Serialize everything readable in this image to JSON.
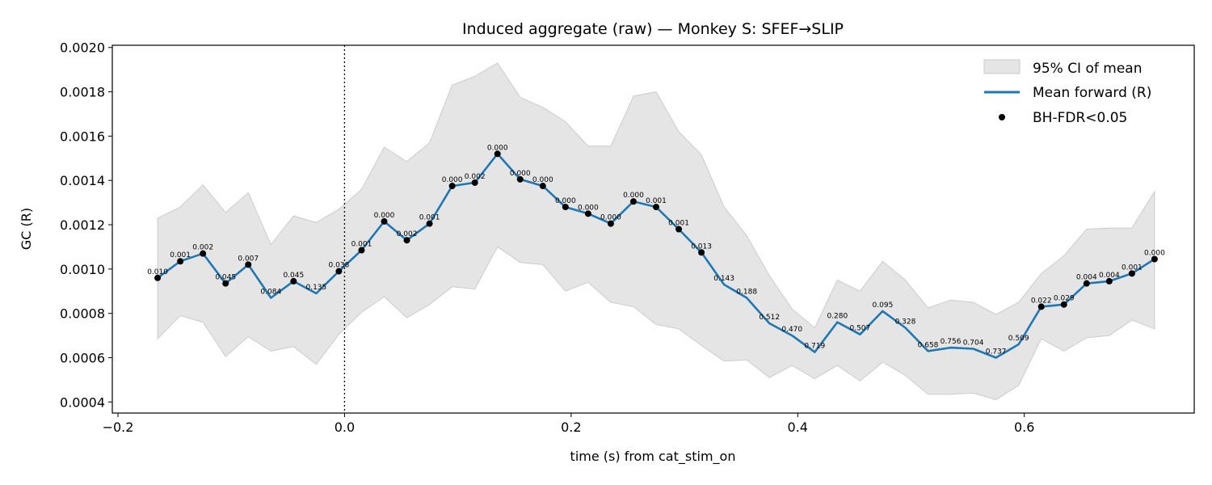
{
  "chart_data": {
    "type": "line",
    "title": "Induced aggregate (raw) — Monkey S: SFEF→SLIP",
    "xlabel": "time (s) from cat_stim_on",
    "ylabel": "GC (R)",
    "xlim": [
      -0.205,
      0.75
    ],
    "ylim": [
      0.00035,
      0.00201
    ],
    "xticks": [
      -0.2,
      0.0,
      0.2,
      0.4,
      0.6
    ],
    "xtick_labels": [
      "−0.2",
      "0.0",
      "0.2",
      "0.4",
      "0.6"
    ],
    "yticks": [
      0.0004,
      0.0006,
      0.0008,
      0.001,
      0.0012,
      0.0014,
      0.0016,
      0.0018,
      0.002
    ],
    "ytick_labels": [
      "0.0004",
      "0.0006",
      "0.0008",
      "0.0010",
      "0.0012",
      "0.0014",
      "0.0016",
      "0.0018",
      "0.0020"
    ],
    "vline_x": 0.0,
    "legend_position": "top-right",
    "legend": {
      "ci": "95% CI of mean",
      "mean": "Mean forward (R)",
      "sig": "BH-FDR<0.05"
    },
    "colors": {
      "mean_line": "#1f77b4",
      "ci_fill": "#e5e5e5",
      "ci_edge": "#cccccc",
      "sig_marker": "#000000"
    },
    "x": [
      -0.165,
      -0.145,
      -0.125,
      -0.105,
      -0.085,
      -0.065,
      -0.045,
      -0.025,
      -0.005,
      0.015,
      0.035,
      0.055,
      0.075,
      0.095,
      0.115,
      0.135,
      0.155,
      0.175,
      0.195,
      0.215,
      0.235,
      0.255,
      0.275,
      0.295,
      0.315,
      0.335,
      0.355,
      0.375,
      0.395,
      0.415,
      0.435,
      0.455,
      0.475,
      0.495,
      0.515,
      0.535,
      0.555,
      0.575,
      0.595,
      0.615,
      0.635,
      0.655,
      0.675,
      0.695,
      0.715
    ],
    "series": [
      {
        "name": "Mean forward (R)",
        "values": [
          0.00096,
          0.001035,
          0.00107,
          0.000935,
          0.00102,
          0.00087,
          0.000945,
          0.00089,
          0.00099,
          0.001085,
          0.001215,
          0.00113,
          0.001205,
          0.001375,
          0.00139,
          0.00152,
          0.001405,
          0.001375,
          0.00128,
          0.00125,
          0.001205,
          0.001305,
          0.00128,
          0.00118,
          0.001075,
          0.00093,
          0.00087,
          0.000755,
          0.0007,
          0.000625,
          0.00076,
          0.000705,
          0.00081,
          0.000735,
          0.00063,
          0.000645,
          0.00064,
          0.0006,
          0.00066,
          0.00083,
          0.00084,
          0.000935,
          0.000945,
          0.00098,
          0.001045
        ]
      }
    ],
    "ci_upper": [
      0.00123,
      0.00128,
      0.00138,
      0.001255,
      0.001345,
      0.00111,
      0.00124,
      0.00121,
      0.00127,
      0.00136,
      0.00155,
      0.001485,
      0.00157,
      0.00183,
      0.00187,
      0.00193,
      0.001775,
      0.00173,
      0.001665,
      0.001555,
      0.001555,
      0.00178,
      0.0018,
      0.00162,
      0.001515,
      0.00128,
      0.00115,
      0.00097,
      0.00082,
      0.000735,
      0.00095,
      0.0009,
      0.001035,
      0.00095,
      0.000825,
      0.00086,
      0.00085,
      0.000795,
      0.00085,
      0.00098,
      0.00106,
      0.00118,
      0.001185,
      0.001185,
      0.00135
    ],
    "ci_lower": [
      0.000685,
      0.00079,
      0.00076,
      0.000605,
      0.000695,
      0.00063,
      0.00065,
      0.00057,
      0.000705,
      0.000805,
      0.000875,
      0.00078,
      0.00084,
      0.00092,
      0.00091,
      0.0011,
      0.00103,
      0.00102,
      0.0009,
      0.00094,
      0.00085,
      0.00083,
      0.00075,
      0.00073,
      0.000655,
      0.000585,
      0.00059,
      0.00051,
      0.000565,
      0.000505,
      0.000565,
      0.000495,
      0.00058,
      0.00052,
      0.000435,
      0.000435,
      0.00044,
      0.00041,
      0.000475,
      0.000685,
      0.00063,
      0.00069,
      0.0007,
      0.00077,
      0.00073
    ],
    "sig_markers_x": [
      -0.165,
      -0.145,
      -0.125,
      -0.105,
      -0.085,
      -0.045,
      -0.005,
      0.015,
      0.035,
      0.055,
      0.075,
      0.095,
      0.115,
      0.135,
      0.155,
      0.175,
      0.195,
      0.215,
      0.235,
      0.255,
      0.275,
      0.295,
      0.315,
      0.615,
      0.635,
      0.655,
      0.675,
      0.695,
      0.715
    ],
    "p_labels": [
      "0.010",
      "0.001",
      "0.002",
      "0.045",
      "0.007",
      "0.084",
      "0.045",
      "0.135",
      "0.038",
      "0.001",
      "0.000",
      "0.002",
      "0.001",
      "0.000",
      "0.002",
      "0.000",
      "0.000",
      "0.000",
      "0.000",
      "0.000",
      "0.000",
      "0.000",
      "0.001",
      "0.001",
      "0.013",
      "0.143",
      "0.188",
      "0.512",
      "0.470",
      "0.719",
      "0.280",
      "0.507",
      "0.095",
      "0.328",
      "0.658",
      "0.756",
      "0.704",
      "0.737",
      "0.509",
      "0.022",
      "0.029",
      "0.004",
      "0.004",
      "0.001",
      "0.000"
    ]
  }
}
